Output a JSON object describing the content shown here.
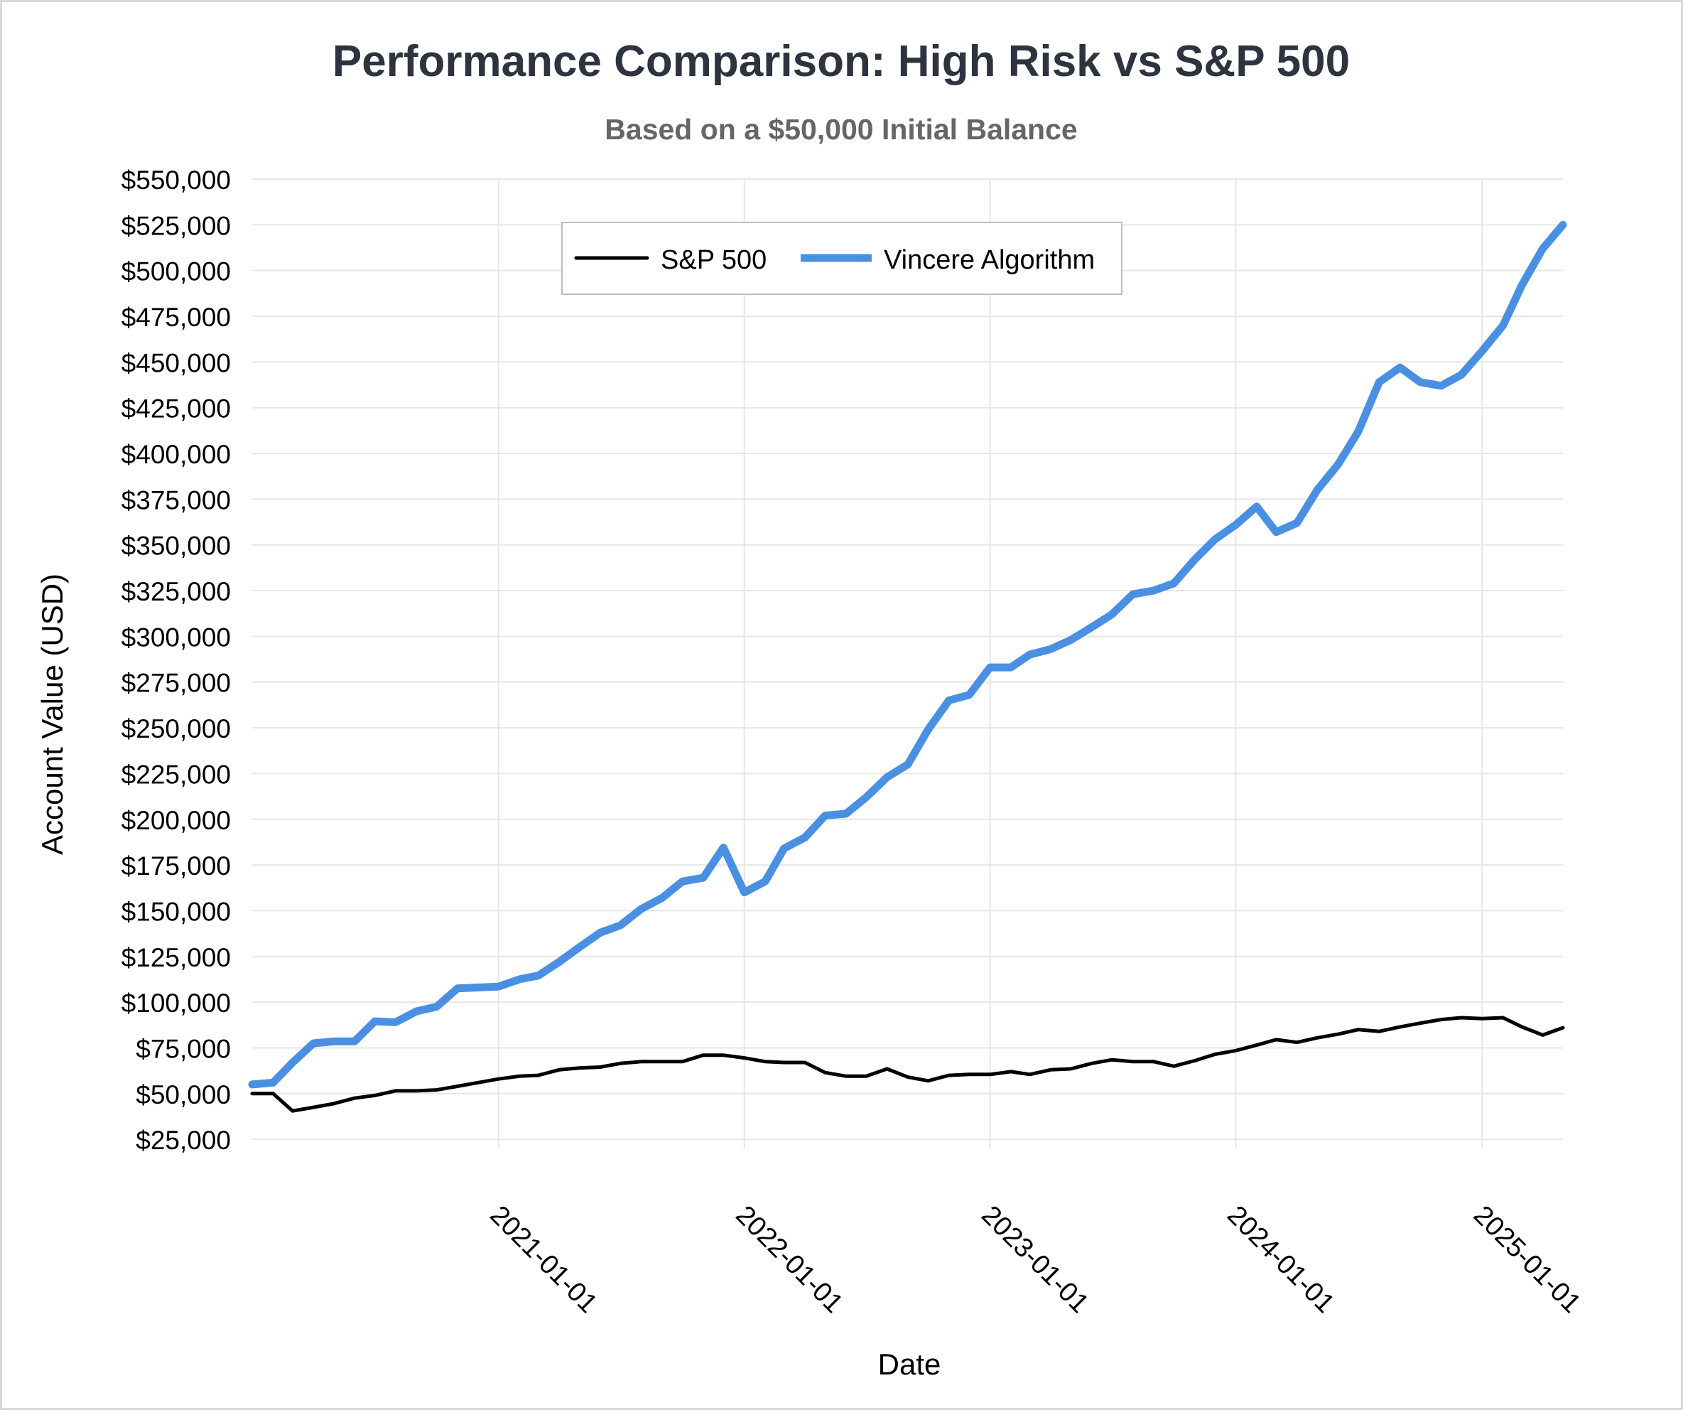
{
  "chart_data": {
    "type": "line",
    "title": "Performance Comparison: High Risk vs S&P 500",
    "subtitle": "Based on a $50,000 Initial Balance",
    "xlabel": "Date",
    "ylabel": "Account Value (USD)",
    "xlim": [
      "2020-01-01",
      "2025-05-01"
    ],
    "ylim": [
      20000,
      550000
    ],
    "y_ticks": [
      25000,
      50000,
      75000,
      100000,
      125000,
      150000,
      175000,
      200000,
      225000,
      250000,
      275000,
      300000,
      325000,
      350000,
      375000,
      400000,
      425000,
      450000,
      475000,
      500000,
      525000,
      550000
    ],
    "y_tick_labels": [
      "$25,000",
      "$50,000",
      "$75,000",
      "$100,000",
      "$125,000",
      "$150,000",
      "$175,000",
      "$200,000",
      "$225,000",
      "$250,000",
      "$275,000",
      "$300,000",
      "$325,000",
      "$350,000",
      "$375,000",
      "$400,000",
      "$425,000",
      "$450,000",
      "$475,000",
      "$500,000",
      "$525,000",
      "$550,000"
    ],
    "x_ticks": [
      "2021-01-01",
      "2022-01-01",
      "2023-01-01",
      "2024-01-01",
      "2025-01-01"
    ],
    "grid": true,
    "legend": "top-center",
    "x": [
      "2020-01-01",
      "2020-02-01",
      "2020-03-01",
      "2020-04-01",
      "2020-05-01",
      "2020-06-01",
      "2020-07-01",
      "2020-08-01",
      "2020-09-01",
      "2020-10-01",
      "2020-11-01",
      "2020-12-01",
      "2021-01-01",
      "2021-02-01",
      "2021-03-01",
      "2021-04-01",
      "2021-05-01",
      "2021-06-01",
      "2021-07-01",
      "2021-08-01",
      "2021-09-01",
      "2021-10-01",
      "2021-11-01",
      "2021-12-01",
      "2022-01-01",
      "2022-02-01",
      "2022-03-01",
      "2022-04-01",
      "2022-05-01",
      "2022-06-01",
      "2022-07-01",
      "2022-08-01",
      "2022-09-01",
      "2022-10-01",
      "2022-11-01",
      "2022-12-01",
      "2023-01-01",
      "2023-02-01",
      "2023-03-01",
      "2023-04-01",
      "2023-05-01",
      "2023-06-01",
      "2023-07-01",
      "2023-08-01",
      "2023-09-01",
      "2023-10-01",
      "2023-11-01",
      "2023-12-01",
      "2024-01-01",
      "2024-02-01",
      "2024-03-01",
      "2024-04-01",
      "2024-05-01",
      "2024-06-01",
      "2024-07-01",
      "2024-08-01",
      "2024-09-01",
      "2024-10-01",
      "2024-11-01",
      "2024-12-01",
      "2025-01-01",
      "2025-02-01",
      "2025-03-01",
      "2025-04-01",
      "2025-05-01"
    ],
    "series": [
      {
        "name": "S&P 500",
        "color": "#000000",
        "values": [
          50000,
          50000,
          40500,
          42500,
          44500,
          47500,
          49000,
          51500,
          51500,
          52000,
          54000,
          56000,
          58000,
          59500,
          60000,
          63000,
          64000,
          64500,
          66500,
          67500,
          67500,
          67500,
          71000,
          71000,
          69500,
          67500,
          67000,
          67000,
          61500,
          59500,
          59500,
          63500,
          59000,
          57000,
          60000,
          60500,
          60500,
          62000,
          60500,
          63000,
          63500,
          66500,
          68500,
          67500,
          67500,
          65000,
          68000,
          71500,
          73500,
          76500,
          79500,
          78000,
          80500,
          82500,
          85000,
          84000,
          86500,
          88500,
          90500,
          91500,
          91000,
          91500,
          86500,
          82000,
          86000
        ]
      },
      {
        "name": "Vincere Algorithm",
        "color": "#4a90e2",
        "values": [
          55000,
          56000,
          67000,
          77500,
          78500,
          78500,
          89500,
          89000,
          95000,
          97500,
          107500,
          108000,
          108500,
          112500,
          114500,
          122000,
          130000,
          138000,
          142000,
          151000,
          157000,
          166000,
          168000,
          184500,
          160000,
          166000,
          184000,
          190000,
          202000,
          203000,
          212000,
          223000,
          230000,
          249000,
          265000,
          268000,
          283000,
          283000,
          290000,
          293000,
          298000,
          305000,
          312000,
          323000,
          325000,
          329000,
          342000,
          353000,
          361000,
          371000,
          357000,
          362000,
          380000,
          394000,
          412000,
          439000,
          447000,
          439000,
          437000,
          443000,
          456000,
          470000,
          492000,
          512000,
          525000
        ]
      }
    ]
  }
}
